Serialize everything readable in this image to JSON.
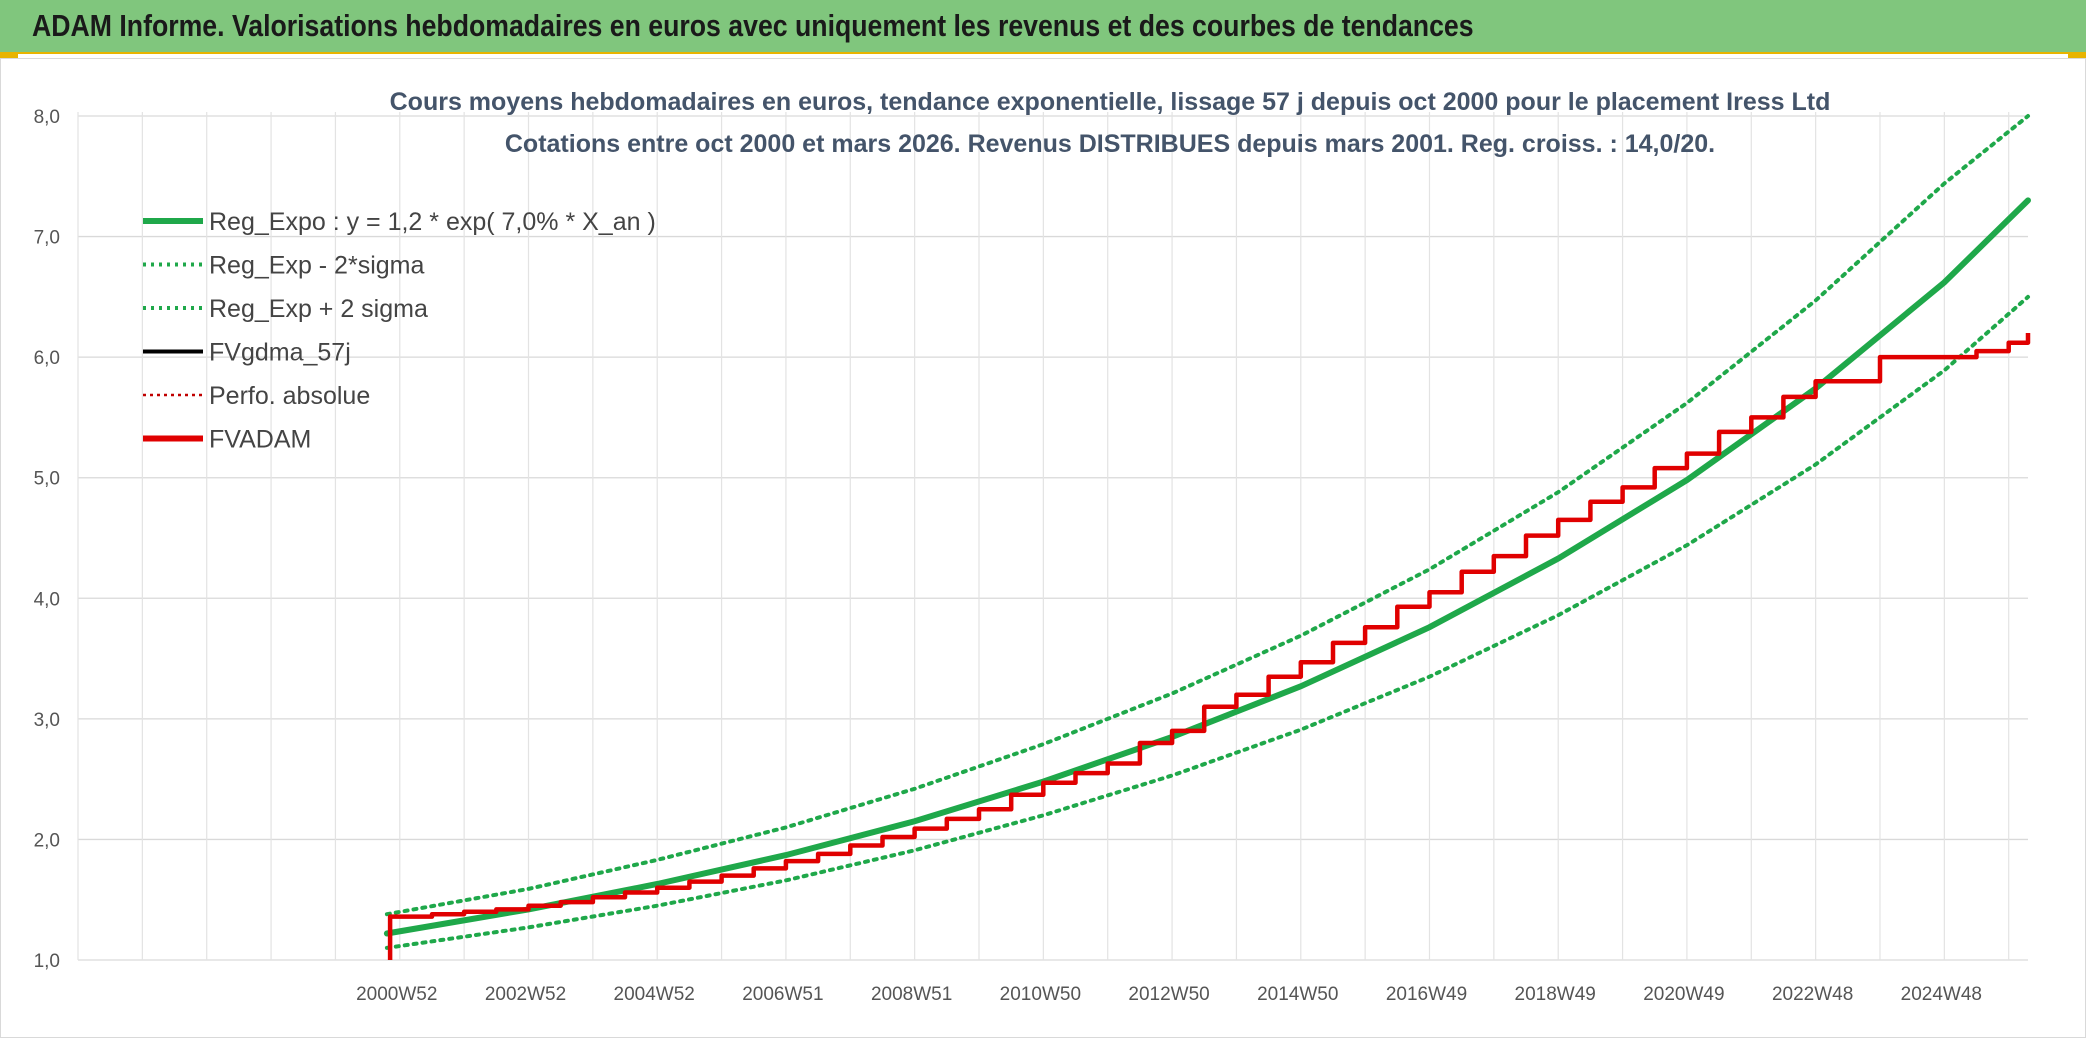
{
  "header": {
    "title": "ADAM Informe. Valorisations hebdomadaires en euros avec uniquement les revenus et des courbes de tendances"
  },
  "colors": {
    "header_bg": "#80c67d",
    "reg_expo": "#1fa84a",
    "fvgdma": "#000000",
    "fvadam": "#e00000",
    "perfo": "#c00000"
  },
  "chart_data": {
    "type": "line",
    "title_line1": "Cours moyens hebdomadaires en euros, tendance exponentielle, lissage 57 j depuis oct 2000 pour le placement Iress Ltd",
    "title_line2": "Cotations entre oct 2000 et mars 2026. Revenus DISTRIBUES depuis mars 2001. Reg. croiss. : 14,0/20.",
    "x_range": [
      1996.0,
      2026.3
    ],
    "ylim": [
      1.0,
      8.0
    ],
    "y_ticks": [
      "1,0",
      "2,0",
      "3,0",
      "4,0",
      "5,0",
      "6,0",
      "7,0",
      "8,0"
    ],
    "x_ticks": [
      {
        "label": "2000W52",
        "x": 2001.0
      },
      {
        "label": "2002W52",
        "x": 2003.0
      },
      {
        "label": "2004W52",
        "x": 2005.0
      },
      {
        "label": "2006W51",
        "x": 2007.0
      },
      {
        "label": "2008W51",
        "x": 2009.0
      },
      {
        "label": "2010W50",
        "x": 2011.0
      },
      {
        "label": "2012W50",
        "x": 2013.0
      },
      {
        "label": "2014W50",
        "x": 2015.0
      },
      {
        "label": "2016W49",
        "x": 2017.0
      },
      {
        "label": "2018W49",
        "x": 2019.0
      },
      {
        "label": "2020W49",
        "x": 2021.0
      },
      {
        "label": "2022W48",
        "x": 2023.0
      },
      {
        "label": "2024W48",
        "x": 2025.0
      }
    ],
    "legend": [
      {
        "label": "Reg_Expo : y = 1,2 * exp( 7,0% *  X_an )",
        "style": "solid-thick",
        "color": "#1fa84a"
      },
      {
        "label": "Reg_Exp - 2*sigma",
        "style": "dotted",
        "color": "#1fa84a"
      },
      {
        "label": "Reg_Exp + 2 sigma",
        "style": "dotted",
        "color": "#1fa84a"
      },
      {
        "label": "FVgdma_57j",
        "style": "solid",
        "color": "#000000"
      },
      {
        "label": "Perfo. absolue",
        "style": "dotted-thin",
        "color": "#c00000"
      },
      {
        "label": "FVADAM",
        "style": "solid-thick",
        "color": "#e00000"
      }
    ],
    "series": [
      {
        "name": "Reg_Expo : y = 1,2 * exp( 7,0% *  X_an )",
        "x": [
          2000.8,
          2003,
          2005,
          2007,
          2009,
          2011,
          2013,
          2015,
          2017,
          2019,
          2021,
          2023,
          2025,
          2026.3
        ],
        "y": [
          1.22,
          1.42,
          1.63,
          1.87,
          2.15,
          2.48,
          2.85,
          3.27,
          3.76,
          4.33,
          4.98,
          5.74,
          6.62,
          7.3
        ]
      },
      {
        "name": "Reg_Exp - 2*sigma",
        "x": [
          2000.8,
          2003,
          2005,
          2007,
          2009,
          2011,
          2013,
          2015,
          2017,
          2019,
          2021,
          2023,
          2025,
          2026.3
        ],
        "y": [
          1.1,
          1.27,
          1.45,
          1.66,
          1.91,
          2.2,
          2.53,
          2.91,
          3.35,
          3.86,
          4.44,
          5.11,
          5.89,
          6.5
        ]
      },
      {
        "name": "Reg_Exp + 2 sigma",
        "x": [
          2000.8,
          2003,
          2005,
          2007,
          2009,
          2011,
          2013,
          2015,
          2017,
          2019,
          2021,
          2023,
          2025,
          2026.3
        ],
        "y": [
          1.38,
          1.59,
          1.83,
          2.1,
          2.42,
          2.79,
          3.21,
          3.69,
          4.24,
          4.88,
          5.62,
          6.47,
          7.44,
          8.0
        ]
      },
      {
        "name": "FVADAM",
        "x": [
          2000.85,
          2000.85,
          2001.5,
          2002.0,
          2002.5,
          2003.0,
          2003.5,
          2004.0,
          2004.5,
          2005.0,
          2005.5,
          2006.0,
          2006.5,
          2007.0,
          2007.5,
          2008.0,
          2008.5,
          2009.0,
          2009.5,
          2010.0,
          2010.5,
          2011.0,
          2011.5,
          2012.0,
          2012.5,
          2013.0,
          2013.5,
          2014.0,
          2014.5,
          2015.0,
          2015.5,
          2016.0,
          2016.5,
          2017.0,
          2017.5,
          2018.0,
          2018.5,
          2019.0,
          2019.5,
          2020.0,
          2020.5,
          2021.0,
          2021.5,
          2022.0,
          2022.5,
          2023.0,
          2024.0,
          2024.6,
          2025.0,
          2025.5,
          2026.0,
          2026.3
        ],
        "y": [
          1.0,
          1.36,
          1.38,
          1.4,
          1.42,
          1.45,
          1.48,
          1.52,
          1.56,
          1.6,
          1.65,
          1.7,
          1.76,
          1.82,
          1.88,
          1.95,
          2.02,
          2.09,
          2.17,
          2.25,
          2.37,
          2.47,
          2.55,
          2.63,
          2.8,
          2.9,
          3.1,
          3.2,
          3.35,
          3.47,
          3.63,
          3.76,
          3.93,
          4.05,
          4.22,
          4.35,
          4.52,
          4.65,
          4.8,
          4.92,
          5.08,
          5.2,
          5.38,
          5.5,
          5.67,
          5.8,
          6.0,
          6.0,
          6.0,
          6.05,
          6.12,
          6.2
        ]
      }
    ],
    "grid": true,
    "legend_placement": "top-left"
  }
}
